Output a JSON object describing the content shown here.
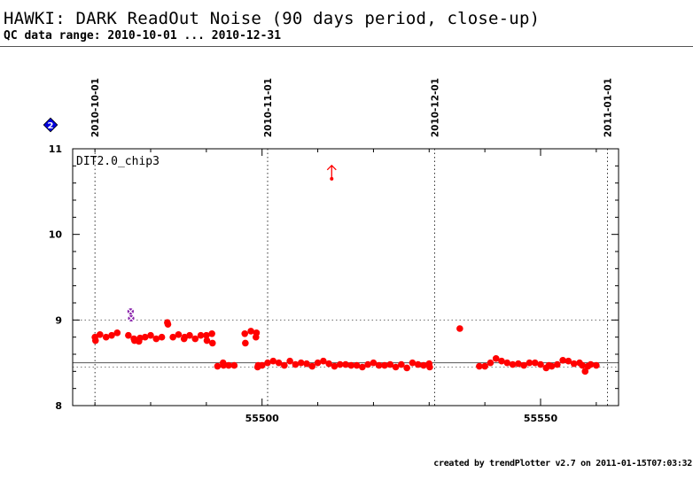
{
  "header": {
    "title": "HAWKI: DARK ReadOut Noise (90 days period, close-up)",
    "subtitle": "QC data range: 2010-10-01 ... 2010-12-31"
  },
  "footer": {
    "text": "created by trendPlotter v2.7 on 2011-01-15T07:03:32"
  },
  "badge": {
    "text": "2",
    "color": "#0000dd"
  },
  "colors": {
    "data": "#ff0000",
    "highlight": "#8822aa",
    "reference_line": "#555555",
    "axis": "#000000"
  },
  "chart_data": {
    "type": "scatter",
    "panel_label": "DIT2.0_chip3",
    "xlim": [
      55466,
      55564
    ],
    "ylim": [
      8,
      11
    ],
    "x_ticks": [
      55500,
      55550
    ],
    "y_ticks": [
      8,
      9,
      10,
      11
    ],
    "y_minor_step": 0.2,
    "x_minor_step": 10,
    "date_markers": [
      {
        "label": "2010-10-01",
        "x": 55470
      },
      {
        "label": "2010-11-01",
        "x": 55501
      },
      {
        "label": "2010-12-01",
        "x": 55531
      },
      {
        "label": "2011-01-01",
        "x": 55562
      }
    ],
    "reference_lines": {
      "dotted_upper": 9.0,
      "solid_mean": 8.5,
      "dotted_lower": 8.45
    },
    "grid": false,
    "outlier_arrow": {
      "x": 55512.5,
      "y": 10.65,
      "direction": "up"
    },
    "highlighted_points": [
      {
        "x": 55476.4,
        "y": 9.1
      },
      {
        "x": 55476.5,
        "y": 9.02
      }
    ],
    "points": [
      {
        "x": 55470.0,
        "y": 8.8
      },
      {
        "x": 55470.1,
        "y": 8.76
      },
      {
        "x": 55470.9,
        "y": 8.83
      },
      {
        "x": 55472.0,
        "y": 8.8
      },
      {
        "x": 55473.0,
        "y": 8.82
      },
      {
        "x": 55474.0,
        "y": 8.85
      },
      {
        "x": 55476.0,
        "y": 8.82
      },
      {
        "x": 55477.0,
        "y": 8.78
      },
      {
        "x": 55477.1,
        "y": 8.76
      },
      {
        "x": 55477.9,
        "y": 8.75
      },
      {
        "x": 55478.1,
        "y": 8.79
      },
      {
        "x": 55479.0,
        "y": 8.8
      },
      {
        "x": 55480.0,
        "y": 8.82
      },
      {
        "x": 55481.0,
        "y": 8.78
      },
      {
        "x": 55482.0,
        "y": 8.8
      },
      {
        "x": 55483.0,
        "y": 8.97
      },
      {
        "x": 55483.1,
        "y": 8.95
      },
      {
        "x": 55484.0,
        "y": 8.8
      },
      {
        "x": 55485.0,
        "y": 8.83
      },
      {
        "x": 55486.0,
        "y": 8.78
      },
      {
        "x": 55486.1,
        "y": 8.8
      },
      {
        "x": 55487.0,
        "y": 8.82
      },
      {
        "x": 55488.0,
        "y": 8.78
      },
      {
        "x": 55489.0,
        "y": 8.82
      },
      {
        "x": 55490.0,
        "y": 8.82
      },
      {
        "x": 55490.1,
        "y": 8.76
      },
      {
        "x": 55491.0,
        "y": 8.84
      },
      {
        "x": 55491.1,
        "y": 8.73
      },
      {
        "x": 55492.0,
        "y": 8.46
      },
      {
        "x": 55493.0,
        "y": 8.5
      },
      {
        "x": 55493.1,
        "y": 8.47
      },
      {
        "x": 55494.0,
        "y": 8.47
      },
      {
        "x": 55495.0,
        "y": 8.47
      },
      {
        "x": 55496.9,
        "y": 8.84
      },
      {
        "x": 55497.0,
        "y": 8.73
      },
      {
        "x": 55498.0,
        "y": 8.87
      },
      {
        "x": 55498.9,
        "y": 8.8
      },
      {
        "x": 55499.0,
        "y": 8.85
      },
      {
        "x": 55499.2,
        "y": 8.45
      },
      {
        "x": 55499.3,
        "y": 8.47
      },
      {
        "x": 55500.0,
        "y": 8.47
      },
      {
        "x": 55501.0,
        "y": 8.5
      },
      {
        "x": 55502.0,
        "y": 8.52
      },
      {
        "x": 55503.0,
        "y": 8.5
      },
      {
        "x": 55504.0,
        "y": 8.47
      },
      {
        "x": 55505.0,
        "y": 8.52
      },
      {
        "x": 55506.0,
        "y": 8.48
      },
      {
        "x": 55507.0,
        "y": 8.5
      },
      {
        "x": 55508.0,
        "y": 8.49
      },
      {
        "x": 55509.0,
        "y": 8.46
      },
      {
        "x": 55510.0,
        "y": 8.5
      },
      {
        "x": 55511.0,
        "y": 8.52
      },
      {
        "x": 55512.0,
        "y": 8.49
      },
      {
        "x": 55513.0,
        "y": 8.46
      },
      {
        "x": 55514.0,
        "y": 8.48
      },
      {
        "x": 55515.0,
        "y": 8.48
      },
      {
        "x": 55516.0,
        "y": 8.47
      },
      {
        "x": 55517.0,
        "y": 8.47
      },
      {
        "x": 55518.0,
        "y": 8.45
      },
      {
        "x": 55519.0,
        "y": 8.48
      },
      {
        "x": 55520.0,
        "y": 8.5
      },
      {
        "x": 55521.0,
        "y": 8.47
      },
      {
        "x": 55522.0,
        "y": 8.47
      },
      {
        "x": 55523.0,
        "y": 8.48
      },
      {
        "x": 55524.0,
        "y": 8.45
      },
      {
        "x": 55525.0,
        "y": 8.48
      },
      {
        "x": 55526.0,
        "y": 8.44
      },
      {
        "x": 55527.0,
        "y": 8.5
      },
      {
        "x": 55528.0,
        "y": 8.48
      },
      {
        "x": 55529.0,
        "y": 8.47
      },
      {
        "x": 55530.0,
        "y": 8.49
      },
      {
        "x": 55530.1,
        "y": 8.45
      },
      {
        "x": 55535.5,
        "y": 8.9
      },
      {
        "x": 55539.0,
        "y": 8.46
      },
      {
        "x": 55540.0,
        "y": 8.46
      },
      {
        "x": 55541.0,
        "y": 8.5
      },
      {
        "x": 55542.0,
        "y": 8.55
      },
      {
        "x": 55543.0,
        "y": 8.52
      },
      {
        "x": 55544.0,
        "y": 8.5
      },
      {
        "x": 55545.0,
        "y": 8.48
      },
      {
        "x": 55546.0,
        "y": 8.49
      },
      {
        "x": 55547.0,
        "y": 8.47
      },
      {
        "x": 55548.0,
        "y": 8.5
      },
      {
        "x": 55549.0,
        "y": 8.5
      },
      {
        "x": 55550.0,
        "y": 8.48
      },
      {
        "x": 55551.0,
        "y": 8.44
      },
      {
        "x": 55551.5,
        "y": 8.47
      },
      {
        "x": 55552.0,
        "y": 8.46
      },
      {
        "x": 55553.0,
        "y": 8.48
      },
      {
        "x": 55554.0,
        "y": 8.53
      },
      {
        "x": 55555.0,
        "y": 8.52
      },
      {
        "x": 55556.0,
        "y": 8.49
      },
      {
        "x": 55557.0,
        "y": 8.5
      },
      {
        "x": 55557.5,
        "y": 8.47
      },
      {
        "x": 55558.0,
        "y": 8.4
      },
      {
        "x": 55558.5,
        "y": 8.46
      },
      {
        "x": 55559.0,
        "y": 8.48
      },
      {
        "x": 55560.0,
        "y": 8.47
      }
    ]
  }
}
